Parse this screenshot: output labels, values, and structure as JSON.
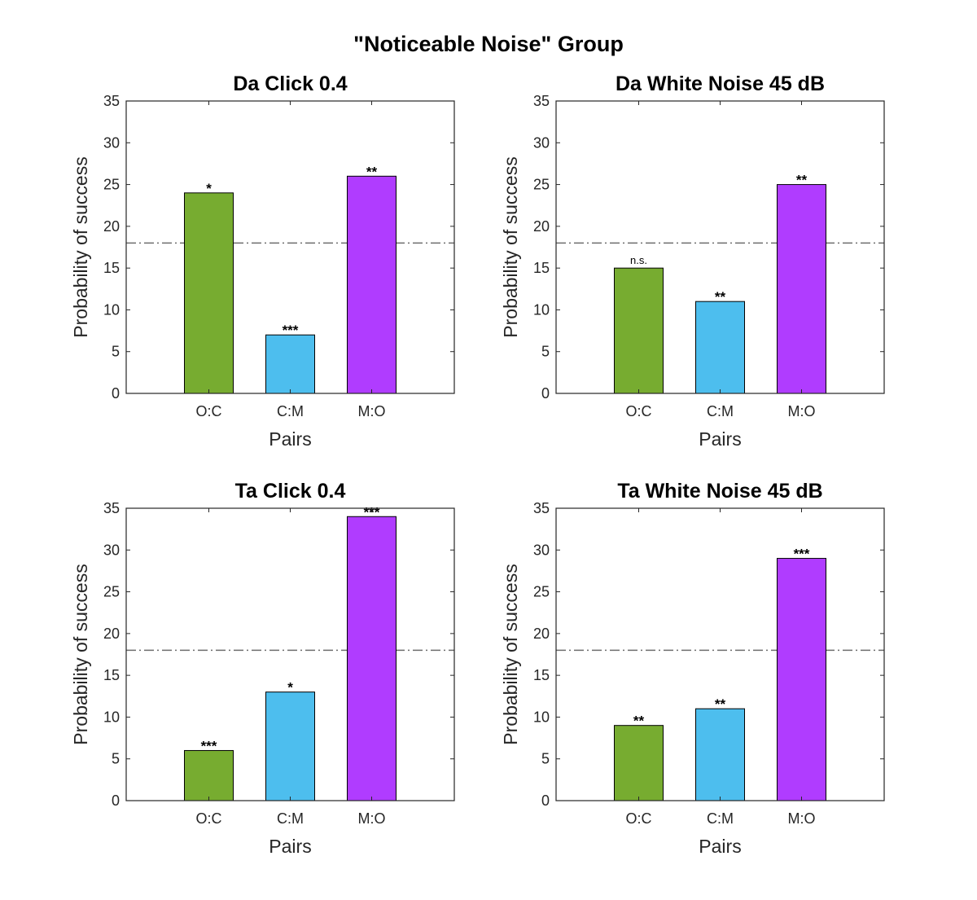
{
  "suptitle": "\"Noticeable Noise\" Group",
  "chart_data": [
    {
      "type": "bar",
      "title": "Da Click 0.4",
      "xlabel": "Pairs",
      "ylabel": "Probability of success",
      "categories": [
        "O:C",
        "C:M",
        "M:O"
      ],
      "values": [
        24,
        7,
        26
      ],
      "significance": [
        "*",
        "***",
        "**"
      ],
      "colors": [
        "#77ac30",
        "#4dbeee",
        "#b03cff"
      ],
      "ylim": [
        0,
        35
      ],
      "yticks": [
        0,
        5,
        10,
        15,
        20,
        25,
        30,
        35
      ],
      "reference_line": 18
    },
    {
      "type": "bar",
      "title": "Da White Noise 45 dB",
      "xlabel": "Pairs",
      "ylabel": "Probability of success",
      "categories": [
        "O:C",
        "C:M",
        "M:O"
      ],
      "values": [
        15,
        11,
        25
      ],
      "significance": [
        "n.s.",
        "**",
        "**"
      ],
      "colors": [
        "#77ac30",
        "#4dbeee",
        "#b03cff"
      ],
      "ylim": [
        0,
        35
      ],
      "yticks": [
        0,
        5,
        10,
        15,
        20,
        25,
        30,
        35
      ],
      "reference_line": 18
    },
    {
      "type": "bar",
      "title": "Ta Click 0.4",
      "xlabel": "Pairs",
      "ylabel": "Probability of success",
      "categories": [
        "O:C",
        "C:M",
        "M:O"
      ],
      "values": [
        6,
        13,
        34
      ],
      "significance": [
        "***",
        "*",
        "***"
      ],
      "colors": [
        "#77ac30",
        "#4dbeee",
        "#b03cff"
      ],
      "ylim": [
        0,
        35
      ],
      "yticks": [
        0,
        5,
        10,
        15,
        20,
        25,
        30,
        35
      ],
      "reference_line": 18
    },
    {
      "type": "bar",
      "title": "Ta White Noise 45 dB",
      "xlabel": "Pairs",
      "ylabel": "Probability of success",
      "categories": [
        "O:C",
        "C:M",
        "M:O"
      ],
      "values": [
        9,
        11,
        29
      ],
      "significance": [
        "**",
        "**",
        "***"
      ],
      "colors": [
        "#77ac30",
        "#4dbeee",
        "#b03cff"
      ],
      "ylim": [
        0,
        35
      ],
      "yticks": [
        0,
        5,
        10,
        15,
        20,
        25,
        30,
        35
      ],
      "reference_line": 18
    }
  ]
}
